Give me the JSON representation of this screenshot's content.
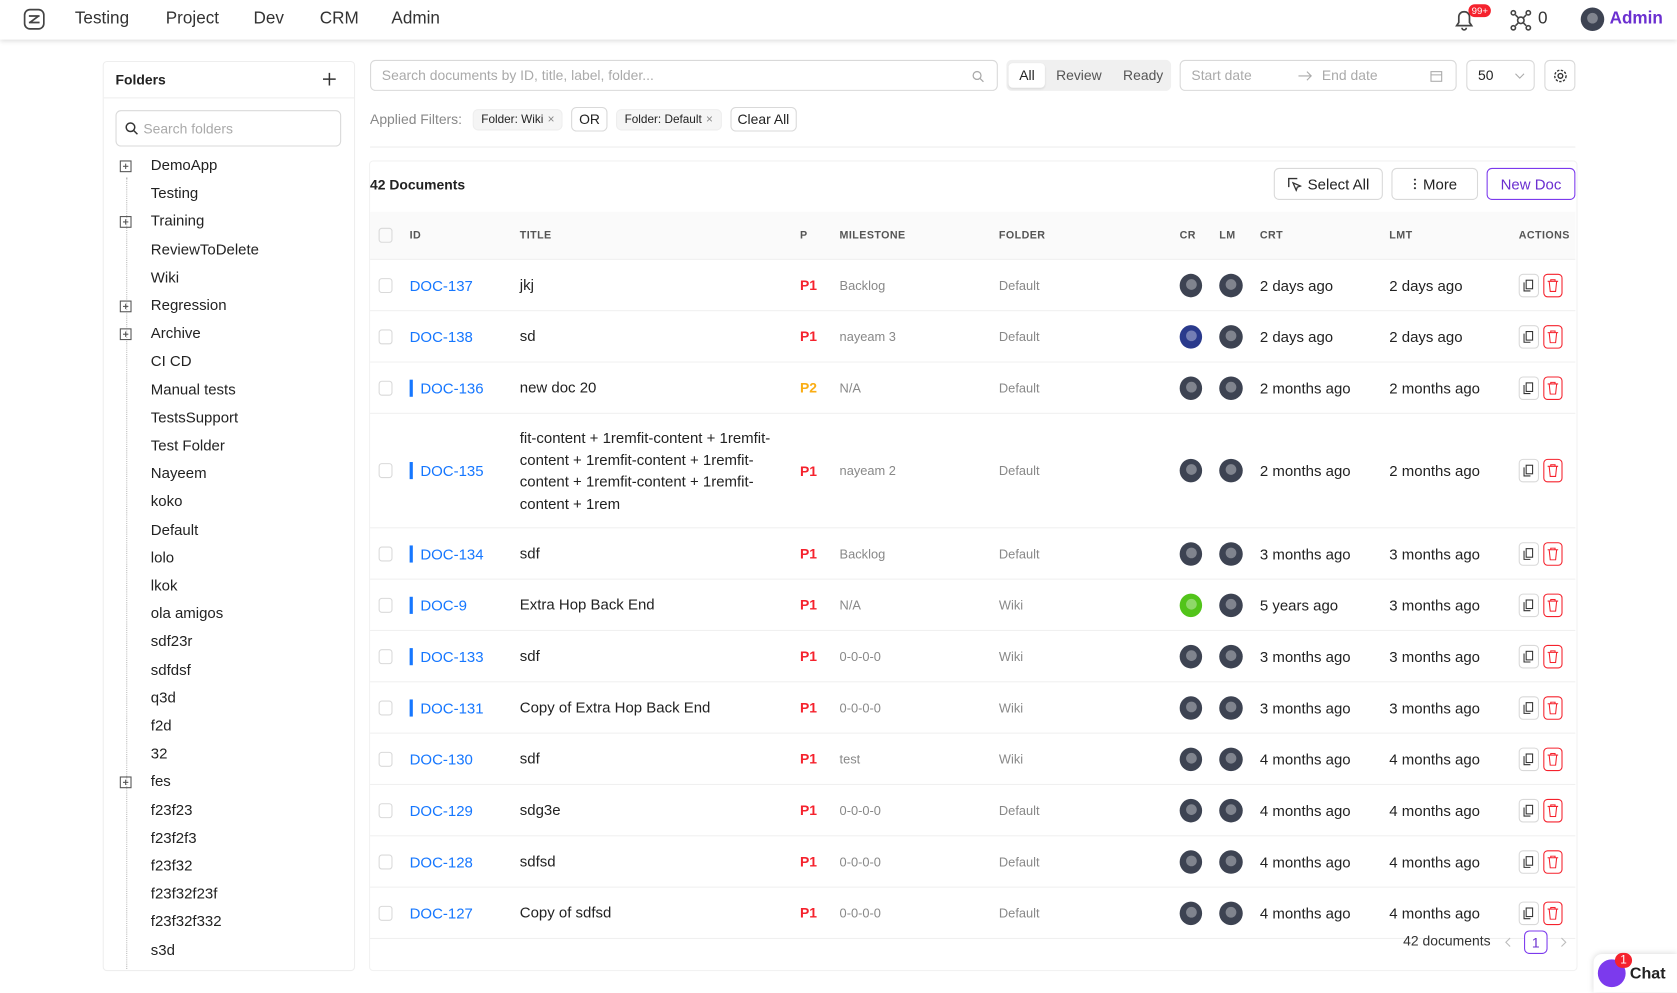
{
  "nav": {
    "items": [
      "Testing",
      "Project",
      "Dev",
      "CRM",
      "Admin"
    ],
    "badge": "99+",
    "network_count": "0",
    "user": "Admin"
  },
  "filters": {
    "search_placeholder": "Search documents by ID, title, label, folder...",
    "tabs": [
      "All",
      "Review",
      "Ready"
    ],
    "start_date": "Start date",
    "end_date": "End date",
    "page_size": "50",
    "applied_label": "Applied Filters:",
    "chips": [
      "Folder: Wiki",
      "Folder: Default"
    ],
    "operator": "OR",
    "clear": "Clear All"
  },
  "folders": {
    "title": "Folders",
    "search_placeholder": "Search folders",
    "items": [
      {
        "label": "DemoApp",
        "expandable": true
      },
      {
        "label": "Testing",
        "expandable": false
      },
      {
        "label": "Training",
        "expandable": true
      },
      {
        "label": "ReviewToDelete",
        "expandable": false
      },
      {
        "label": "Wiki",
        "expandable": false
      },
      {
        "label": "Regression",
        "expandable": true
      },
      {
        "label": "Archive",
        "expandable": true
      },
      {
        "label": "CI CD",
        "expandable": false
      },
      {
        "label": "Manual tests",
        "expandable": false
      },
      {
        "label": "TestsSupport",
        "expandable": false
      },
      {
        "label": "Test Folder",
        "expandable": false
      },
      {
        "label": "Nayeem",
        "expandable": false
      },
      {
        "label": "koko",
        "expandable": false
      },
      {
        "label": "Default",
        "expandable": false
      },
      {
        "label": "lolo",
        "expandable": false
      },
      {
        "label": "lkok",
        "expandable": false
      },
      {
        "label": "ola amigos",
        "expandable": false
      },
      {
        "label": "sdf23r",
        "expandable": false
      },
      {
        "label": "sdfdsf",
        "expandable": false
      },
      {
        "label": "q3d",
        "expandable": false
      },
      {
        "label": "f2d",
        "expandable": false
      },
      {
        "label": "32",
        "expandable": false
      },
      {
        "label": "fes",
        "expandable": true
      },
      {
        "label": "f23f23",
        "expandable": false
      },
      {
        "label": "f23f2f3",
        "expandable": false
      },
      {
        "label": "f23f32",
        "expandable": false
      },
      {
        "label": "f23f32f23f",
        "expandable": false
      },
      {
        "label": "f23f32f332",
        "expandable": false
      },
      {
        "label": "s3d",
        "expandable": false
      }
    ]
  },
  "documents": {
    "count_label": "42 Documents",
    "actions": [
      "Select All",
      "More",
      "New Doc"
    ],
    "columns": [
      "ID",
      "TITLE",
      "P",
      "MILESTONE",
      "FOLDER",
      "CR",
      "LM",
      "CRT",
      "LMT",
      "ACTIONS"
    ],
    "rows": [
      {
        "id": "DOC-137",
        "title": "jkj",
        "priority": "P1",
        "priority_color": "#f5222d",
        "milestone": "Backlog",
        "folder": "Default",
        "crt": "2 days ago",
        "lmt": "2 days ago",
        "marked": false,
        "cr_color": "#3d4352"
      },
      {
        "id": "DOC-138",
        "title": "sd",
        "priority": "P1",
        "priority_color": "#f5222d",
        "milestone": "nayeam 3",
        "folder": "Default",
        "crt": "2 days ago",
        "lmt": "2 days ago",
        "marked": false,
        "cr_color": "#2a3a8c"
      },
      {
        "id": "DOC-136",
        "title": "new doc 20",
        "priority": "P2",
        "priority_color": "#faad14",
        "milestone": "N/A",
        "folder": "Default",
        "crt": "2 months ago",
        "lmt": "2 months ago",
        "marked": true,
        "cr_color": "#3d4352"
      },
      {
        "id": "DOC-135",
        "title": "fit-content + 1remfit-content + 1remfit-content + 1remfit-content + 1remfit-content + 1remfit-content + 1remfit-content + 1rem",
        "priority": "P1",
        "priority_color": "#f5222d",
        "milestone": "nayeam 2",
        "folder": "Default",
        "crt": "2 months ago",
        "lmt": "2 months ago",
        "marked": true,
        "cr_color": "#3d4352"
      },
      {
        "id": "DOC-134",
        "title": "sdf",
        "priority": "P1",
        "priority_color": "#f5222d",
        "milestone": "Backlog",
        "folder": "Default",
        "crt": "3 months ago",
        "lmt": "3 months ago",
        "marked": true,
        "cr_color": "#3d4352"
      },
      {
        "id": "DOC-9",
        "title": "Extra Hop Back End",
        "priority": "P1",
        "priority_color": "#f5222d",
        "milestone": "N/A",
        "folder": "Wiki",
        "crt": "5 years ago",
        "lmt": "3 months ago",
        "marked": true,
        "cr_color": "#52c41a"
      },
      {
        "id": "DOC-133",
        "title": "sdf",
        "priority": "P1",
        "priority_color": "#f5222d",
        "milestone": "0-0-0-0",
        "folder": "Wiki",
        "crt": "3 months ago",
        "lmt": "3 months ago",
        "marked": true,
        "cr_color": "#3d4352"
      },
      {
        "id": "DOC-131",
        "title": "Copy of Extra Hop Back End",
        "priority": "P1",
        "priority_color": "#f5222d",
        "milestone": "0-0-0-0",
        "folder": "Wiki",
        "crt": "3 months ago",
        "lmt": "3 months ago",
        "marked": true,
        "cr_color": "#3d4352"
      },
      {
        "id": "DOC-130",
        "title": "sdf",
        "priority": "P1",
        "priority_color": "#f5222d",
        "milestone": "test",
        "folder": "Wiki",
        "crt": "4 months ago",
        "lmt": "4 months ago",
        "marked": false,
        "cr_color": "#3d4352"
      },
      {
        "id": "DOC-129",
        "title": "sdg3e",
        "priority": "P1",
        "priority_color": "#f5222d",
        "milestone": "0-0-0-0",
        "folder": "Default",
        "crt": "4 months ago",
        "lmt": "4 months ago",
        "marked": false,
        "cr_color": "#3d4352"
      },
      {
        "id": "DOC-128",
        "title": "sdfsd",
        "priority": "P1",
        "priority_color": "#f5222d",
        "milestone": "0-0-0-0",
        "folder": "Default",
        "crt": "4 months ago",
        "lmt": "4 months ago",
        "marked": false,
        "cr_color": "#3d4352"
      },
      {
        "id": "DOC-127",
        "title": "Copy of sdfsd",
        "priority": "P1",
        "priority_color": "#f5222d",
        "milestone": "0-0-0-0",
        "folder": "Default",
        "crt": "4 months ago",
        "lmt": "4 months ago",
        "marked": false,
        "cr_color": "#3d4352"
      }
    ],
    "footer": "42 documents",
    "page": "1"
  },
  "chat": {
    "label": "Chat",
    "badge": "1"
  }
}
